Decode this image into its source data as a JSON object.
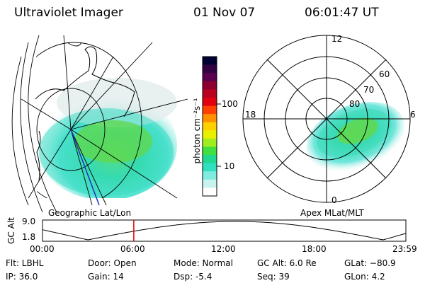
{
  "header": {
    "instrument": "Ultraviolet Imager",
    "date": "01 Nov 07",
    "time": "06:01:47 UT"
  },
  "colorbar": {
    "unit_label": "photon cm⁻²s⁻¹",
    "ticks": [
      "100",
      "10"
    ],
    "colors": [
      "#000033",
      "#330044",
      "#5a0050",
      "#8b0030",
      "#b80020",
      "#e00010",
      "#ff4000",
      "#ff9000",
      "#ffd000",
      "#e8f000",
      "#a0ee20",
      "#40e040",
      "#20d890",
      "#30e0c0",
      "#80ece0",
      "#c8f4f0",
      "#ffffff"
    ]
  },
  "left_map": {
    "label": "Geographic Lat/Lon"
  },
  "right_map": {
    "label": "Apex MLat/MLT",
    "mlt_labels": {
      "top": "12",
      "left": "18",
      "right": "6",
      "bottom": "0"
    },
    "lat_labels": [
      "60",
      "70",
      "80"
    ]
  },
  "timeline": {
    "axis_label": "GC Alt",
    "y_ticks": [
      "9.0",
      "1.8"
    ],
    "x_ticks": [
      "00:00",
      "06:00",
      "12:00",
      "18:00",
      "23:59"
    ],
    "marker_time_hours": 6.03,
    "marker_color": "#dd0000"
  },
  "status": {
    "flt": "Flt: LBHL",
    "ip": "IP: 36.0",
    "door": "Door: Open",
    "gain": "Gain: 14",
    "mode": "Mode: Normal",
    "dsp": "Dsp:    -5.4",
    "gc_alt": "GC Alt: 6.0 Re",
    "seq": "Seq: 39",
    "glat": "GLat: −80.9",
    "glon": "GLon:    4.2"
  }
}
